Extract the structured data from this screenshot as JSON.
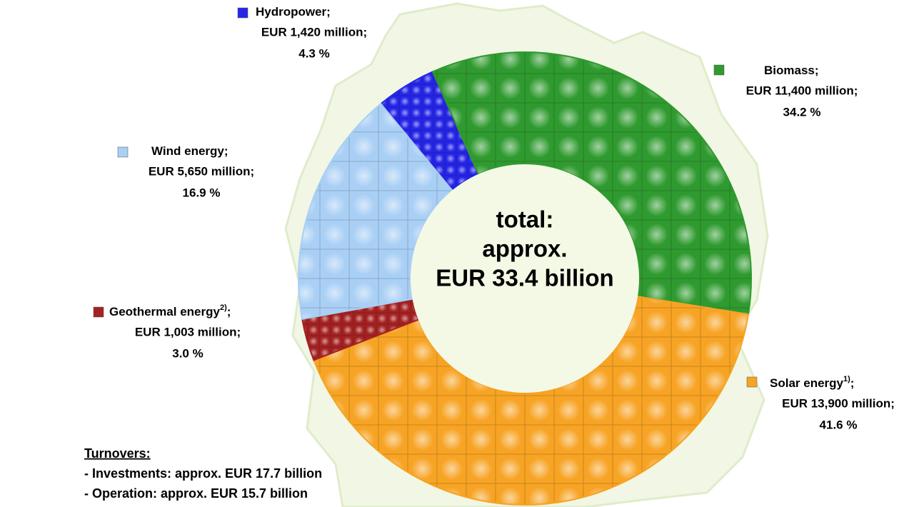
{
  "chart_data": {
    "type": "donut",
    "categories": [
      "Hydropower;",
      "Biomass;",
      "Solar energy",
      "Geothermal energy",
      "Wind energy;"
    ],
    "footnotes": [
      null,
      null,
      "1)",
      "2)",
      null
    ],
    "footnote_suffix": [
      null,
      null,
      ";",
      ";",
      null
    ],
    "amount_labels": [
      "EUR 1,420 million;",
      "EUR 11,400 million;",
      "EUR 13,900 million;",
      "EUR 1,003 million;",
      "EUR 5,650 million;"
    ],
    "values": [
      4.3,
      34.2,
      41.6,
      3.0,
      16.9
    ],
    "value_labels": [
      "4.3 %",
      "34.2 %",
      "41.6 %",
      "3.0 %",
      "16.9 %"
    ],
    "colors": [
      "#2626e8",
      "#2f9a2f",
      "#f7a324",
      "#a52222",
      "#a9cff5"
    ],
    "center_text": [
      "total:",
      "approx.",
      "EUR 33.4 billion"
    ],
    "notes": {
      "title": "Turnovers: ",
      "lines": [
        "- Investments:  approx. EUR 17.7 billion",
        "- Operation: approx. EUR 15.7 billion"
      ]
    }
  }
}
